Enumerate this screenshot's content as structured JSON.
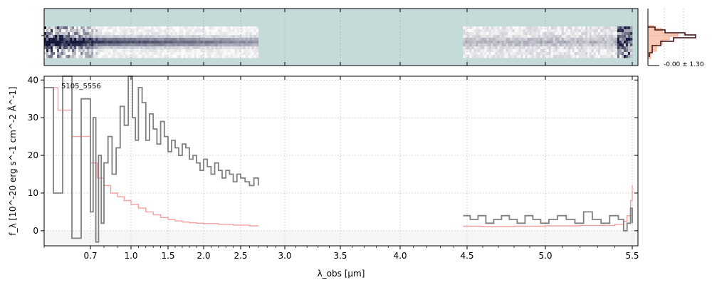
{
  "chart_data": [
    {
      "type": "heatmap",
      "panel": "2D spectrum",
      "background_color": "#c5dbda",
      "colormap": "white-to-dark-navy",
      "blocks": [
        {
          "x_range": [
            0.6,
            2.7
          ],
          "rows": 11,
          "intensity": "strong trace near center row, noisy at blue end"
        },
        {
          "x_range": [
            4.47,
            5.5
          ],
          "rows": 11,
          "intensity": "faint trace, noisy near red end"
        }
      ]
    },
    {
      "type": "step",
      "panel": "spatial profile",
      "label": "-0.00 ± 1.30",
      "colors": {
        "data": "#5a2a2a",
        "model": "#f4a582"
      }
    },
    {
      "type": "line",
      "title": "",
      "annotation": "5105_5556",
      "xlabel": "λ_obs [μm]",
      "ylabel": "f_λ [10^-20 erg s^-1 cm^-2 Å^-1]",
      "ylim": [
        -4,
        41
      ],
      "x_tick_labels": [
        "0.7",
        "1.0",
        "1.5",
        "2.0",
        "2.5",
        "3.0",
        "3.5",
        "4.0",
        "4.5",
        "5.0",
        "5.5"
      ],
      "y_tick_labels": [
        "0",
        "10",
        "20",
        "30",
        "40"
      ],
      "grid": true,
      "colors": {
        "data": "#808080",
        "model": "#f4a0a0",
        "error_band": "#e8e8e8"
      },
      "series": [
        {
          "role": "observed spectrum",
          "segment1": {
            "x": [
              0.6,
              0.62,
              0.64,
              0.66,
              0.68,
              0.7,
              0.72,
              0.74,
              0.76,
              0.78,
              0.8,
              0.83,
              0.86,
              0.89,
              0.92,
              0.95,
              0.98,
              1.02,
              1.06,
              1.1,
              1.15,
              1.2,
              1.25,
              1.3,
              1.35,
              1.4,
              1.45,
              1.5,
              1.55,
              1.6,
              1.65,
              1.7,
              1.75,
              1.8,
              1.85,
              1.9,
              1.95,
              2.0,
              2.05,
              2.1,
              2.15,
              2.2,
              2.25,
              2.3,
              2.35,
              2.4,
              2.45,
              2.5,
              2.55,
              2.6,
              2.65,
              2.7
            ],
            "y": [
              38,
              10,
              41,
              -2,
              35,
              5,
              30,
              -3,
              20,
              2,
              18,
              25,
              15,
              22,
              33,
              28,
              42,
              30,
              24,
              38,
              34,
              24,
              31,
              27,
              23,
              29,
              25,
              21,
              24,
              22,
              20,
              23,
              22,
              19,
              20,
              18,
              16,
              19,
              17,
              15,
              18,
              16,
              14,
              16,
              15,
              13,
              15,
              14,
              13,
              12,
              14,
              12
            ]
          },
          "segment2": {
            "x": [
              4.47,
              4.52,
              4.57,
              4.62,
              4.67,
              4.72,
              4.77,
              4.82,
              4.87,
              4.92,
              4.97,
              5.02,
              5.07,
              5.12,
              5.17,
              5.22,
              5.27,
              5.32,
              5.37,
              5.42,
              5.45,
              5.47,
              5.49,
              5.5
            ],
            "y": [
              4,
              3,
              4,
              2,
              3,
              4,
              3,
              2,
              4,
              3,
              2,
              3,
              4,
              3,
              2,
              5,
              3,
              2,
              4,
              3,
              0,
              2,
              6,
              2
            ]
          }
        },
        {
          "role": "model",
          "segment1": {
            "x": [
              0.6,
              0.63,
              0.66,
              0.7,
              0.75,
              0.8,
              0.85,
              0.9,
              0.95,
              1.0,
              1.1,
              1.2,
              1.3,
              1.4,
              1.5,
              1.6,
              1.7,
              1.8,
              1.9,
              2.0,
              2.2,
              2.4,
              2.6,
              2.7
            ],
            "y": [
              38,
              32,
              25,
              18,
              14,
              12,
              10,
              9,
              8,
              7,
              6,
              5,
              4.2,
              3.5,
              3,
              2.6,
              2.3,
              2.1,
              2.0,
              1.9,
              1.7,
              1.5,
              1.3,
              1.2
            ]
          },
          "segment2": {
            "x": [
              4.47,
              4.6,
              4.8,
              5.0,
              5.2,
              5.4,
              5.45,
              5.47,
              5.49,
              5.5
            ],
            "y": [
              1.2,
              1.1,
              1.2,
              1.3,
              1.4,
              1.7,
              2.5,
              4,
              8,
              12
            ]
          }
        }
      ]
    }
  ]
}
